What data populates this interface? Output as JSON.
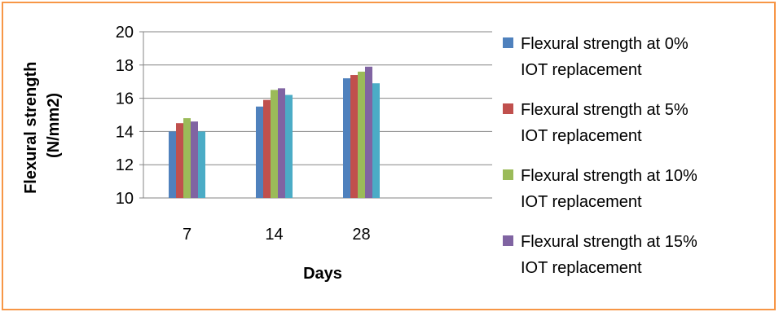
{
  "chart_data": {
    "type": "bar",
    "title": "",
    "xlabel": "Days",
    "ylabel": "Flexural strength (N/mm2)",
    "ylabel_lines": [
      "Flexural strength",
      "(N/mm2)"
    ],
    "categories": [
      "7",
      "14",
      "28"
    ],
    "ylim": [
      10,
      20
    ],
    "yticks": [
      10,
      12,
      14,
      16,
      18,
      20
    ],
    "grid": true,
    "legend_position": "right",
    "series": [
      {
        "name": "Flexural strength at 0% IOT replacement",
        "label_lines": [
          "Flexural strength at 0%",
          "IOT replacement"
        ],
        "color": "#4f81bd",
        "values": [
          14.0,
          15.5,
          17.2
        ]
      },
      {
        "name": "Flexural strength at 5% IOT replacement",
        "label_lines": [
          "Flexural strength at 5%",
          "IOT replacement"
        ],
        "color": "#c0504d",
        "values": [
          14.5,
          15.9,
          17.4
        ]
      },
      {
        "name": "Flexural strength at 10% IOT replacement",
        "label_lines": [
          "Flexural strength at 10%",
          "IOT replacement"
        ],
        "color": "#9bbb59",
        "values": [
          14.8,
          16.5,
          17.6
        ]
      },
      {
        "name": "Flexural strength at 15% IOT replacement",
        "label_lines": [
          "Flexural strength at 15%",
          "IOT replacement"
        ],
        "color": "#8064a2",
        "values": [
          14.6,
          16.6,
          17.9
        ]
      },
      {
        "name": "",
        "legend": false,
        "color": "#4bacc6",
        "values": [
          14.0,
          16.2,
          16.9
        ]
      }
    ]
  }
}
